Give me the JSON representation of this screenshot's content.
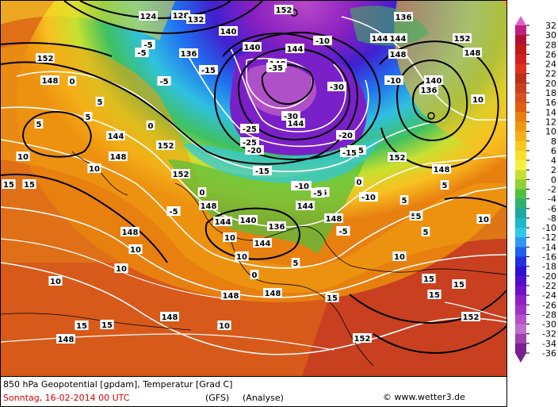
{
  "footer": {
    "line1": "850 hPa Geopotential [gpdam], Temperatur [Grad C]",
    "date": "Sonntag, 16-02-2014  00 UTC",
    "model": "(GFS)",
    "type": "(Analyse)",
    "copyright": "© www.wetter3.de"
  },
  "legend": {
    "values": [
      "32",
      "30",
      "28",
      "26",
      "24",
      "22",
      "20",
      "18",
      "16",
      "14",
      "12",
      "10",
      "8",
      "6",
      "4",
      "2",
      "0",
      "-2",
      "-4",
      "-6",
      "-8",
      "-10",
      "-12",
      "-14",
      "-16",
      "-18",
      "-20",
      "-22",
      "-24",
      "-26",
      "-28",
      "-30",
      "-32",
      "-34",
      "-36"
    ],
    "colors": [
      "#e060d0",
      "#c02080",
      "#b01030",
      "#c01818",
      "#d02020",
      "#e03020",
      "#b83018",
      "#c84020",
      "#d85020",
      "#e06010",
      "#e88010",
      "#f09810",
      "#f8b018",
      "#f8c820",
      "#f8e028",
      "#f8f040",
      "#c8e030",
      "#90d038",
      "#50c040",
      "#30b070",
      "#20a8a0",
      "#20b8c8",
      "#30c8e8",
      "#3098f0",
      "#2060f0",
      "#2030e0",
      "#3010d0",
      "#5010c8",
      "#7010c8",
      "#9020c0",
      "#a030c8",
      "#b850c8",
      "#c070d0",
      "#a040b0",
      "#7a2090"
    ]
  },
  "geopotential_labels": [
    {
      "t": "124"
    },
    {
      "t": "128"
    },
    {
      "t": "132"
    },
    {
      "t": "152"
    },
    {
      "t": "136"
    },
    {
      "t": "140"
    },
    {
      "t": "144"
    },
    {
      "t": "148"
    },
    {
      "t": "136"
    },
    {
      "t": "140"
    },
    {
      "t": "144"
    },
    {
      "t": "148"
    },
    {
      "t": "152"
    },
    {
      "t": "152"
    },
    {
      "t": "148"
    },
    {
      "t": "152"
    },
    {
      "t": "144"
    },
    {
      "t": "140"
    },
    {
      "t": "136"
    },
    {
      "t": "148"
    },
    {
      "t": "152"
    },
    {
      "t": "148"
    },
    {
      "t": "144"
    },
    {
      "t": "148"
    },
    {
      "t": "144"
    },
    {
      "t": "148"
    },
    {
      "t": "152"
    },
    {
      "t": "148"
    },
    {
      "t": "140"
    },
    {
      "t": "136"
    },
    {
      "t": "144"
    },
    {
      "t": "148"
    },
    {
      "t": "148"
    },
    {
      "t": "148"
    },
    {
      "t": "148"
    },
    {
      "t": "152"
    },
    {
      "t": "148"
    },
    {
      "t": "152"
    },
    {
      "t": "144"
    },
    {
      "t": "144"
    }
  ],
  "temperature_labels": [
    {
      "t": "-5"
    },
    {
      "t": "-5"
    },
    {
      "t": "-5"
    },
    {
      "t": "-10"
    },
    {
      "t": "-15"
    },
    {
      "t": "-15"
    },
    {
      "t": "-10"
    },
    {
      "t": "-5"
    },
    {
      "t": "0"
    },
    {
      "t": "5"
    },
    {
      "t": "5"
    },
    {
      "t": "0"
    },
    {
      "t": "5"
    },
    {
      "t": "10"
    },
    {
      "t": "15"
    },
    {
      "t": "15"
    },
    {
      "t": "10"
    },
    {
      "t": "10"
    },
    {
      "t": "10"
    },
    {
      "t": "5"
    },
    {
      "t": "5"
    },
    {
      "t": "0"
    },
    {
      "t": "-5"
    },
    {
      "t": "-10"
    },
    {
      "t": "-15"
    },
    {
      "t": "-20"
    },
    {
      "t": "-25"
    },
    {
      "t": "-30"
    },
    {
      "t": "-35"
    },
    {
      "t": "-30"
    },
    {
      "t": "-25"
    },
    {
      "t": "-20"
    },
    {
      "t": "-15"
    },
    {
      "t": "-10"
    },
    {
      "t": "-5"
    },
    {
      "t": "0"
    },
    {
      "t": "5"
    },
    {
      "t": "10"
    },
    {
      "t": "10"
    },
    {
      "t": "15"
    },
    {
      "t": "15"
    },
    {
      "t": "15"
    },
    {
      "t": "15"
    },
    {
      "t": "10"
    },
    {
      "t": "5"
    },
    {
      "t": "5"
    },
    {
      "t": "0"
    },
    {
      "t": "-5"
    },
    {
      "t": "-10"
    },
    {
      "t": "10"
    },
    {
      "t": "10"
    },
    {
      "t": "10"
    },
    {
      "t": "15"
    },
    {
      "t": "15"
    },
    {
      "t": "10"
    },
    {
      "t": "5"
    }
  ]
}
